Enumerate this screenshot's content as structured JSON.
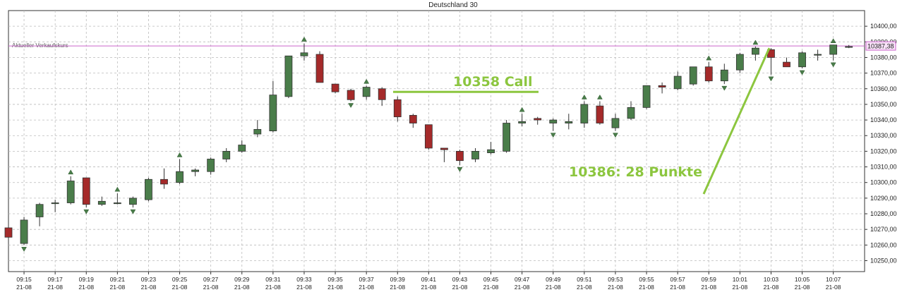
{
  "chart_data": {
    "type": "candlestick",
    "title": "Deutschland 30",
    "ylim": [
      10243,
      10410
    ],
    "y_ticks": [
      "10400,00",
      "10390,00",
      "10380,00",
      "10370,00",
      "10360,00",
      "10350,00",
      "10340,00",
      "10330,00",
      "10320,00",
      "10310,00",
      "10300,00",
      "10290,00",
      "10280,00",
      "10270,00",
      "10260,00",
      "10250,00"
    ],
    "x_tick_times": [
      "09:15",
      "09:17",
      "09:19",
      "09:21",
      "09:23",
      "09:25",
      "09:27",
      "09:29",
      "09:31",
      "09:33",
      "09:35",
      "09:37",
      "09:39",
      "09:41",
      "09:43",
      "09:45",
      "09:47",
      "09:49",
      "09:51",
      "09:53",
      "09:55",
      "09:57",
      "09:59",
      "10:01",
      "10:03",
      "10:05",
      "10:07"
    ],
    "x_tick_date": "21-08",
    "grid": true,
    "colors": {
      "up": "#4a7d4a",
      "down": "#a52a2a",
      "annotation": "#8cc63f",
      "reference": "#cc66cc",
      "grid": "#bbbbbb"
    },
    "reference_line": {
      "label": "Aktueller Verkaufskurs",
      "value": 10387.38,
      "badge": "10387,38"
    },
    "candles": [
      {
        "open": 10271,
        "high": 10272,
        "low": 10264,
        "close": 10265
      },
      {
        "open": 10261,
        "high": 10278,
        "low": 10260,
        "close": 10276
      },
      {
        "open": 10278,
        "high": 10287,
        "low": 10272,
        "close": 10286
      },
      {
        "open": 10287,
        "high": 10289,
        "low": 10281,
        "close": 10287
      },
      {
        "open": 10287,
        "high": 10304,
        "low": 10286,
        "close": 10301
      },
      {
        "open": 10303,
        "high": 10303,
        "low": 10284,
        "close": 10286
      },
      {
        "open": 10286,
        "high": 10291,
        "low": 10285,
        "close": 10288
      },
      {
        "open": 10287,
        "high": 10293,
        "low": 10286,
        "close": 10287
      },
      {
        "open": 10286,
        "high": 10291,
        "low": 10284,
        "close": 10290
      },
      {
        "open": 10289,
        "high": 10303,
        "low": 10288,
        "close": 10302
      },
      {
        "open": 10302,
        "high": 10309,
        "low": 10296,
        "close": 10299
      },
      {
        "open": 10300,
        "high": 10315,
        "low": 10299,
        "close": 10307
      },
      {
        "open": 10307,
        "high": 10309,
        "low": 10304,
        "close": 10308
      },
      {
        "open": 10307,
        "high": 10316,
        "low": 10305,
        "close": 10315
      },
      {
        "open": 10315,
        "high": 10322,
        "low": 10313,
        "close": 10320
      },
      {
        "open": 10320,
        "high": 10327,
        "low": 10319,
        "close": 10324
      },
      {
        "open": 10331,
        "high": 10340,
        "low": 10329,
        "close": 10334
      },
      {
        "open": 10333,
        "high": 10365,
        "low": 10332,
        "close": 10356
      },
      {
        "open": 10355,
        "high": 10381,
        "low": 10354,
        "close": 10381
      },
      {
        "open": 10381,
        "high": 10389,
        "low": 10378,
        "close": 10383
      },
      {
        "open": 10382,
        "high": 10384,
        "low": 10364,
        "close": 10364
      },
      {
        "open": 10363,
        "high": 10363,
        "low": 10357,
        "close": 10358
      },
      {
        "open": 10359,
        "high": 10360,
        "low": 10352,
        "close": 10353
      },
      {
        "open": 10355,
        "high": 10362,
        "low": 10353,
        "close": 10361
      },
      {
        "open": 10360,
        "high": 10361,
        "low": 10349,
        "close": 10353
      },
      {
        "open": 10353,
        "high": 10355,
        "low": 10339,
        "close": 10342
      },
      {
        "open": 10343,
        "high": 10344,
        "low": 10335,
        "close": 10338
      },
      {
        "open": 10337,
        "high": 10337,
        "low": 10321,
        "close": 10322
      },
      {
        "open": 10322,
        "high": 10322,
        "low": 10313,
        "close": 10321
      },
      {
        "open": 10320,
        "high": 10321,
        "low": 10311,
        "close": 10314
      },
      {
        "open": 10315,
        "high": 10322,
        "low": 10313,
        "close": 10320
      },
      {
        "open": 10319,
        "high": 10326,
        "low": 10318,
        "close": 10321
      },
      {
        "open": 10320,
        "high": 10340,
        "low": 10319,
        "close": 10338
      },
      {
        "open": 10338,
        "high": 10344,
        "low": 10336,
        "close": 10339
      },
      {
        "open": 10341,
        "high": 10342,
        "low": 10337,
        "close": 10340
      },
      {
        "open": 10338,
        "high": 10341,
        "low": 10333,
        "close": 10340
      },
      {
        "open": 10338,
        "high": 10344,
        "low": 10334,
        "close": 10339
      },
      {
        "open": 10338,
        "high": 10352,
        "low": 10335,
        "close": 10350
      },
      {
        "open": 10349,
        "high": 10352,
        "low": 10337,
        "close": 10338
      },
      {
        "open": 10335,
        "high": 10344,
        "low": 10333,
        "close": 10341
      },
      {
        "open": 10341,
        "high": 10352,
        "low": 10340,
        "close": 10348
      },
      {
        "open": 10348,
        "high": 10362,
        "low": 10347,
        "close": 10362
      },
      {
        "open": 10362,
        "high": 10364,
        "low": 10357,
        "close": 10361
      },
      {
        "open": 10360,
        "high": 10371,
        "low": 10359,
        "close": 10368
      },
      {
        "open": 10363,
        "high": 10374,
        "low": 10362,
        "close": 10374
      },
      {
        "open": 10374,
        "high": 10377,
        "low": 10364,
        "close": 10365
      },
      {
        "open": 10365,
        "high": 10376,
        "low": 10363,
        "close": 10372
      },
      {
        "open": 10372,
        "high": 10383,
        "low": 10370,
        "close": 10382
      },
      {
        "open": 10382,
        "high": 10387,
        "low": 10378,
        "close": 10386
      },
      {
        "open": 10385,
        "high": 10386,
        "low": 10369,
        "close": 10380
      },
      {
        "open": 10377,
        "high": 10380,
        "low": 10374,
        "close": 10374
      },
      {
        "open": 10374,
        "high": 10384,
        "low": 10373,
        "close": 10383
      },
      {
        "open": 10382,
        "high": 10385,
        "low": 10378,
        "close": 10382
      },
      {
        "open": 10382,
        "high": 10388,
        "low": 10378,
        "close": 10388
      },
      {
        "open": 10387,
        "high": 10388,
        "low": 10386,
        "close": 10387
      }
    ],
    "annotations": [
      {
        "text": "10358 Call",
        "value": 10358
      },
      {
        "text": "10386: 28 Punkte",
        "value": 10386
      }
    ]
  }
}
